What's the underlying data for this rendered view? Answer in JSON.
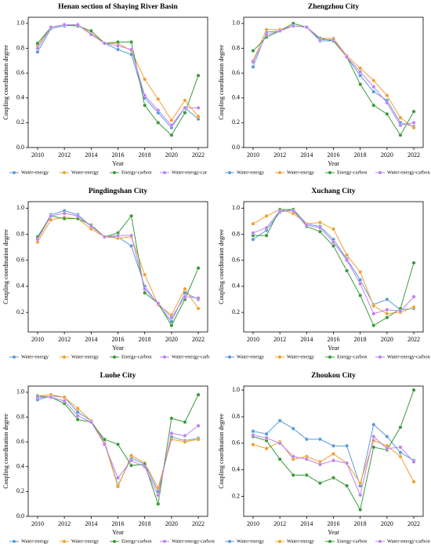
{
  "chart_data": [
    {
      "type": "line",
      "title": "Henan section of Shaying River Basin",
      "xlabel": "Year",
      "ylabel": "Coupling coordination degree",
      "x": [
        2010,
        2011,
        2012,
        2013,
        2014,
        2015,
        2016,
        2017,
        2018,
        2019,
        2020,
        2021,
        2022
      ],
      "xlim": [
        2009.3,
        2022.7
      ],
      "xticks": [
        2010,
        2012,
        2014,
        2016,
        2018,
        2020,
        2022
      ],
      "ylim": [
        0,
        1.05
      ],
      "yticks": [
        {
          "value": 0,
          "label": "0.0"
        },
        0.2,
        0.4,
        0.6,
        0.8,
        {
          "value": 1,
          "label": "1.0"
        }
      ],
      "series": [
        {
          "name": "Water-energy",
          "color": "#5b9bd5",
          "values": [
            0.77,
            0.96,
            0.98,
            0.99,
            0.92,
            0.84,
            0.79,
            0.75,
            0.4,
            0.28,
            0.16,
            0.32,
            0.23
          ]
        },
        {
          "name": "Water-energy",
          "color": "#f0a030",
          "values": [
            0.82,
            0.97,
            0.99,
            0.99,
            0.92,
            0.84,
            0.84,
            0.78,
            0.55,
            0.39,
            0.22,
            0.38,
            0.25
          ]
        },
        {
          "name": "Energy-carbon",
          "color": "#3a9a3a",
          "values": [
            0.84,
            0.97,
            0.99,
            0.98,
            0.94,
            0.84,
            0.85,
            0.85,
            0.34,
            0.2,
            0.1,
            0.28,
            0.58
          ]
        },
        {
          "name": "Water-energy-car",
          "color": "#c080f0",
          "values": [
            0.8,
            0.97,
            0.99,
            0.99,
            0.91,
            0.84,
            0.82,
            0.79,
            0.42,
            0.3,
            0.18,
            0.32,
            0.32
          ]
        }
      ]
    },
    {
      "type": "line",
      "title": "Zhengzhou City",
      "xlabel": "Year",
      "ylabel": "Coupling coordination degree",
      "x": [
        2010,
        2011,
        2012,
        2013,
        2014,
        2015,
        2016,
        2017,
        2018,
        2019,
        2020,
        2021,
        2022
      ],
      "xlim": [
        2009.3,
        2022.7
      ],
      "xticks": [
        2010,
        2012,
        2014,
        2016,
        2018,
        2020,
        2022
      ],
      "ylim": [
        0,
        1.05
      ],
      "yticks": [
        {
          "value": 0,
          "label": "0.0"
        },
        0.2,
        0.4,
        0.6,
        0.8,
        {
          "value": 1,
          "label": "1.0"
        }
      ],
      "series": [
        {
          "name": "Water-energy",
          "color": "#5b9bd5",
          "values": [
            0.65,
            0.93,
            0.94,
            0.98,
            0.97,
            0.86,
            0.86,
            0.73,
            0.58,
            0.45,
            0.38,
            0.2,
            0.17
          ]
        },
        {
          "name": "Water-energy",
          "color": "#f0a030",
          "values": [
            0.7,
            0.95,
            0.95,
            0.98,
            0.97,
            0.88,
            0.88,
            0.74,
            0.64,
            0.54,
            0.42,
            0.24,
            0.16
          ]
        },
        {
          "name": "Energy-carbon",
          "color": "#3a9a3a",
          "values": [
            0.78,
            0.89,
            0.94,
            1.0,
            0.97,
            0.88,
            0.86,
            0.73,
            0.51,
            0.34,
            0.27,
            0.1,
            0.29
          ]
        },
        {
          "name": "Water-energy-carbon",
          "color": "#c080f0",
          "values": [
            0.69,
            0.91,
            0.94,
            0.98,
            0.97,
            0.87,
            0.87,
            0.73,
            0.61,
            0.49,
            0.36,
            0.18,
            0.2
          ]
        }
      ]
    },
    {
      "type": "line",
      "title": "Pingdingshan City",
      "xlabel": "Year",
      "ylabel": "Coupling coordination degree",
      "x": [
        2010,
        2011,
        2012,
        2013,
        2014,
        2015,
        2016,
        2017,
        2018,
        2019,
        2020,
        2021,
        2022
      ],
      "xlim": [
        2009.3,
        2022.7
      ],
      "xticks": [
        2010,
        2012,
        2014,
        2016,
        2018,
        2020,
        2022
      ],
      "ylim": [
        0.05,
        1.05
      ],
      "yticks": [
        0.2,
        0.4,
        0.6,
        0.8,
        {
          "value": 1,
          "label": "1.0"
        }
      ],
      "series": [
        {
          "name": "Water-energy",
          "color": "#5b9bd5",
          "values": [
            0.77,
            0.95,
            0.98,
            0.95,
            0.86,
            0.78,
            0.78,
            0.71,
            0.4,
            0.26,
            0.13,
            0.35,
            0.3
          ]
        },
        {
          "name": "Water-energy",
          "color": "#f0a030",
          "values": [
            0.74,
            0.91,
            0.93,
            0.92,
            0.84,
            0.78,
            0.77,
            0.78,
            0.49,
            0.26,
            0.18,
            0.38,
            0.23
          ]
        },
        {
          "name": "Energy-carbon",
          "color": "#3a9a3a",
          "values": [
            0.78,
            0.94,
            0.92,
            0.92,
            0.87,
            0.78,
            0.81,
            0.94,
            0.35,
            0.27,
            0.1,
            0.3,
            0.54
          ]
        },
        {
          "name": "Water-energy-carb",
          "color": "#c080f0",
          "values": [
            0.76,
            0.94,
            0.96,
            0.94,
            0.86,
            0.78,
            0.79,
            0.79,
            0.38,
            0.27,
            0.16,
            0.32,
            0.31
          ]
        }
      ]
    },
    {
      "type": "line",
      "title": "Xuchang City",
      "xlabel": "Year",
      "ylabel": "Coupling coordination degree",
      "x": [
        2010,
        2011,
        2012,
        2013,
        2014,
        2015,
        2016,
        2017,
        2018,
        2019,
        2020,
        2021,
        2022
      ],
      "xlim": [
        2009.3,
        2022.7
      ],
      "xticks": [
        2010,
        2012,
        2014,
        2016,
        2018,
        2020,
        2022
      ],
      "ylim": [
        0.05,
        1.05
      ],
      "yticks": [
        0.2,
        0.4,
        0.6,
        0.8,
        {
          "value": 1,
          "label": "1.0"
        }
      ],
      "series": [
        {
          "name": "Water-energy",
          "color": "#5b9bd5",
          "values": [
            0.76,
            0.83,
            0.97,
            0.99,
            0.88,
            0.86,
            0.76,
            0.61,
            0.45,
            0.26,
            0.3,
            0.22,
            0.23
          ]
        },
        {
          "name": "Water-energy",
          "color": "#f0a030",
          "values": [
            0.88,
            0.94,
            0.99,
            0.96,
            0.88,
            0.89,
            0.84,
            0.64,
            0.51,
            0.25,
            0.19,
            0.2,
            0.24
          ]
        },
        {
          "name": "Energy-carbon",
          "color": "#3a9a3a",
          "values": [
            0.79,
            0.79,
            0.99,
            0.99,
            0.86,
            0.82,
            0.71,
            0.52,
            0.33,
            0.1,
            0.16,
            0.23,
            0.58
          ]
        },
        {
          "name": "Water-energy-carbon",
          "color": "#c080f0",
          "values": [
            0.81,
            0.85,
            0.98,
            0.98,
            0.87,
            0.85,
            0.74,
            0.6,
            0.42,
            0.19,
            0.22,
            0.21,
            0.32
          ]
        }
      ]
    },
    {
      "type": "line",
      "title": "Luohe City",
      "xlabel": "Year",
      "ylabel": "Coupling coordination degree",
      "x": [
        2010,
        2011,
        2012,
        2013,
        2014,
        2015,
        2016,
        2017,
        2018,
        2019,
        2020,
        2021,
        2022
      ],
      "xlim": [
        2009.3,
        2022.7
      ],
      "xticks": [
        2010,
        2012,
        2014,
        2016,
        2018,
        2020,
        2022
      ],
      "ylim": [
        0,
        1.05
      ],
      "yticks": [
        {
          "value": 0,
          "label": "0.0"
        },
        0.2,
        0.4,
        0.6,
        0.8,
        {
          "value": 1,
          "label": "1.0"
        }
      ],
      "series": [
        {
          "name": "Water-energy",
          "color": "#5b9bd5",
          "values": [
            0.94,
            0.97,
            0.96,
            0.84,
            0.77,
            0.6,
            0.25,
            0.47,
            0.42,
            0.2,
            0.64,
            0.61,
            0.63
          ]
        },
        {
          "name": "Water-energy",
          "color": "#f0a030",
          "values": [
            0.97,
            0.98,
            0.96,
            0.87,
            0.77,
            0.59,
            0.24,
            0.49,
            0.43,
            0.23,
            0.62,
            0.6,
            0.62
          ]
        },
        {
          "name": "Energy-carbon",
          "color": "#3a9a3a",
          "values": [
            0.97,
            0.96,
            0.91,
            0.78,
            0.76,
            0.62,
            0.58,
            0.41,
            0.42,
            0.1,
            0.79,
            0.76,
            0.98
          ]
        },
        {
          "name": "Water-energy-carbon",
          "color": "#c080f0",
          "values": [
            0.96,
            0.96,
            0.93,
            0.81,
            0.76,
            0.58,
            0.31,
            0.45,
            0.4,
            0.17,
            0.67,
            0.65,
            0.73
          ]
        }
      ]
    },
    {
      "type": "line",
      "title": "Zhoukou City",
      "xlabel": "Year",
      "ylabel": "Coupling coordination degree",
      "x": [
        2010,
        2011,
        2012,
        2013,
        2014,
        2015,
        2016,
        2017,
        2018,
        2019,
        2020,
        2021,
        2022
      ],
      "xlim": [
        2009.3,
        2022.7
      ],
      "xticks": [
        2010,
        2012,
        2014,
        2016,
        2018,
        2020,
        2022
      ],
      "ylim": [
        0.05,
        1.03
      ],
      "yticks": [
        0.2,
        0.4,
        0.6,
        0.8,
        {
          "value": 1,
          "label": "1.0"
        }
      ],
      "series": [
        {
          "name": "Water-energy",
          "color": "#5b9bd5",
          "values": [
            0.69,
            0.67,
            0.77,
            0.71,
            0.63,
            0.63,
            0.58,
            0.58,
            0.28,
            0.74,
            0.65,
            0.53,
            0.47
          ]
        },
        {
          "name": "Water-energy",
          "color": "#f0a030",
          "values": [
            0.59,
            0.56,
            0.61,
            0.48,
            0.5,
            0.46,
            0.52,
            0.45,
            0.3,
            0.62,
            0.58,
            0.5,
            0.31
          ]
        },
        {
          "name": "Energy-carbon",
          "color": "#3a9a3a",
          "values": [
            0.65,
            0.62,
            0.48,
            0.36,
            0.36,
            0.3,
            0.34,
            0.28,
            0.1,
            0.57,
            0.55,
            0.72,
            1.0
          ]
        },
        {
          "name": "Water-energy-carbon",
          "color": "#c080f0",
          "values": [
            0.66,
            0.64,
            0.6,
            0.5,
            0.48,
            0.44,
            0.47,
            0.45,
            0.21,
            0.65,
            0.56,
            0.57,
            0.46
          ]
        }
      ]
    }
  ]
}
